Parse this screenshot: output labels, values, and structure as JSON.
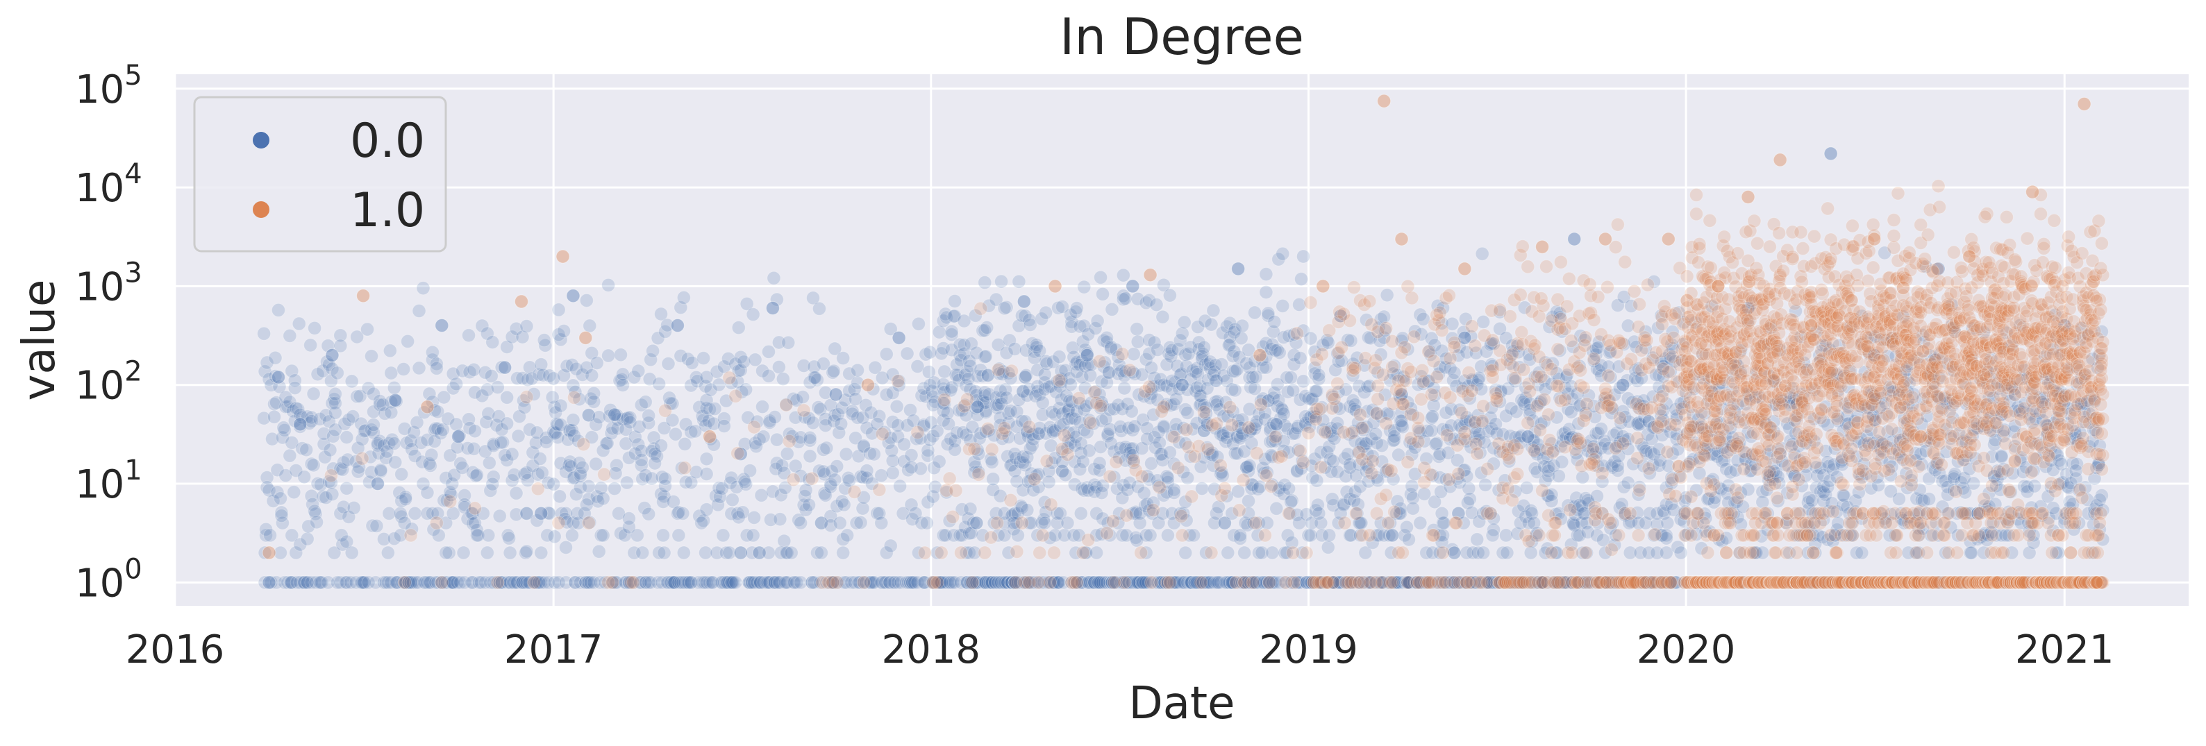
{
  "chart_data": {
    "type": "scatter",
    "title": "In Degree",
    "xlabel": "Date",
    "ylabel": "value",
    "x_scale": "time",
    "y_scale": "log",
    "xlim": [
      "2016-01-01",
      "2021-05-01"
    ],
    "ylim": [
      0.58,
      140000
    ],
    "x_ticks": [
      {
        "label": "2016",
        "date": "2016-01-01"
      },
      {
        "label": "2017",
        "date": "2017-01-01"
      },
      {
        "label": "2018",
        "date": "2018-01-01"
      },
      {
        "label": "2019",
        "date": "2019-01-01"
      },
      {
        "label": "2020",
        "date": "2020-01-01"
      },
      {
        "label": "2021",
        "date": "2021-01-01"
      }
    ],
    "y_ticks": [
      {
        "base": "10",
        "exp": "0",
        "value": 1
      },
      {
        "base": "10",
        "exp": "1",
        "value": 10
      },
      {
        "base": "10",
        "exp": "2",
        "value": 100
      },
      {
        "base": "10",
        "exp": "3",
        "value": 1000
      },
      {
        "base": "10",
        "exp": "4",
        "value": 10000
      },
      {
        "base": "10",
        "exp": "5",
        "value": 100000
      }
    ],
    "grid": true,
    "background": "#EAEAF2",
    "grid_color": "#FFFFFF",
    "legend": {
      "placement": "upper-left",
      "entries": [
        {
          "label": "0.0",
          "color": "#4C72B0"
        },
        {
          "label": "1.0",
          "color": "#DD8452"
        }
      ]
    },
    "marker_opacity": 0.2,
    "series": [
      {
        "name": "0.0",
        "color": "#4C72B0",
        "points": [
          {
            "x": "2016-04-01",
            "y": 1
          },
          {
            "x": "2016-04-10",
            "y": 120
          },
          {
            "x": "2016-05-01",
            "y": 40
          },
          {
            "x": "2016-06-01",
            "y": 200
          },
          {
            "x": "2016-07-15",
            "y": 10
          },
          {
            "x": "2016-08-01",
            "y": 70
          },
          {
            "x": "2016-09-15",
            "y": 400
          },
          {
            "x": "2016-10-01",
            "y": 30
          },
          {
            "x": "2016-11-15",
            "y": 150
          },
          {
            "x": "2016-12-20",
            "y": 5
          },
          {
            "x": "2017-01-20",
            "y": 800
          },
          {
            "x": "2017-03-01",
            "y": 50
          },
          {
            "x": "2017-05-01",
            "y": 400
          },
          {
            "x": "2017-07-01",
            "y": 20
          },
          {
            "x": "2017-08-01",
            "y": 600
          },
          {
            "x": "2017-10-01",
            "y": 80
          },
          {
            "x": "2017-12-01",
            "y": 300
          },
          {
            "x": "2018-02-15",
            "y": 60
          },
          {
            "x": "2018-04-01",
            "y": 700
          },
          {
            "x": "2018-06-01",
            "y": 200
          },
          {
            "x": "2018-07-15",
            "y": 1000
          },
          {
            "x": "2018-09-01",
            "y": 100
          },
          {
            "x": "2018-10-25",
            "y": 1500
          },
          {
            "x": "2018-12-01",
            "y": 40
          },
          {
            "x": "2019-02-01",
            "y": 500
          },
          {
            "x": "2019-04-01",
            "y": 80
          },
          {
            "x": "2019-06-01",
            "y": 300
          },
          {
            "x": "2019-08-01",
            "y": 30
          },
          {
            "x": "2019-09-15",
            "y": 3000
          },
          {
            "x": "2019-11-01",
            "y": 100
          },
          {
            "x": "2020-01-15",
            "y": 1
          },
          {
            "x": "2020-03-01",
            "y": 600
          },
          {
            "x": "2020-04-15",
            "y": 12
          },
          {
            "x": "2020-05-20",
            "y": 22000
          },
          {
            "x": "2020-07-01",
            "y": 200
          },
          {
            "x": "2020-09-01",
            "y": 1500
          },
          {
            "x": "2020-11-01",
            "y": 50
          },
          {
            "x": "2021-01-01",
            "y": 400
          },
          {
            "x": "2021-02-01",
            "y": 1
          }
        ]
      },
      {
        "name": "1.0",
        "color": "#DD8452",
        "points": [
          {
            "x": "2016-04-01",
            "y": 2
          },
          {
            "x": "2016-07-01",
            "y": 800
          },
          {
            "x": "2016-09-01",
            "y": 60
          },
          {
            "x": "2016-12-01",
            "y": 700
          },
          {
            "x": "2017-01-10",
            "y": 2000
          },
          {
            "x": "2017-02-01",
            "y": 300
          },
          {
            "x": "2017-06-01",
            "y": 30
          },
          {
            "x": "2017-11-01",
            "y": 100
          },
          {
            "x": "2018-05-01",
            "y": 1000
          },
          {
            "x": "2018-08-01",
            "y": 1300
          },
          {
            "x": "2018-11-15",
            "y": 200
          },
          {
            "x": "2019-01-15",
            "y": 1000
          },
          {
            "x": "2019-03-15",
            "y": 75000
          },
          {
            "x": "2019-04-01",
            "y": 3000
          },
          {
            "x": "2019-06-01",
            "y": 1500
          },
          {
            "x": "2019-08-15",
            "y": 2500
          },
          {
            "x": "2019-10-15",
            "y": 3000
          },
          {
            "x": "2019-12-15",
            "y": 3000
          },
          {
            "x": "2020-02-01",
            "y": 1000
          },
          {
            "x": "2020-03-01",
            "y": 8000
          },
          {
            "x": "2020-04-01",
            "y": 19000
          },
          {
            "x": "2020-05-01",
            "y": 400
          },
          {
            "x": "2020-07-01",
            "y": 3000
          },
          {
            "x": "2020-08-15",
            "y": 30
          },
          {
            "x": "2020-10-01",
            "y": 2000
          },
          {
            "x": "2020-12-01",
            "y": 9000
          },
          {
            "x": "2021-01-20",
            "y": 70000
          },
          {
            "x": "2021-02-01",
            "y": 1
          }
        ]
      }
    ]
  }
}
